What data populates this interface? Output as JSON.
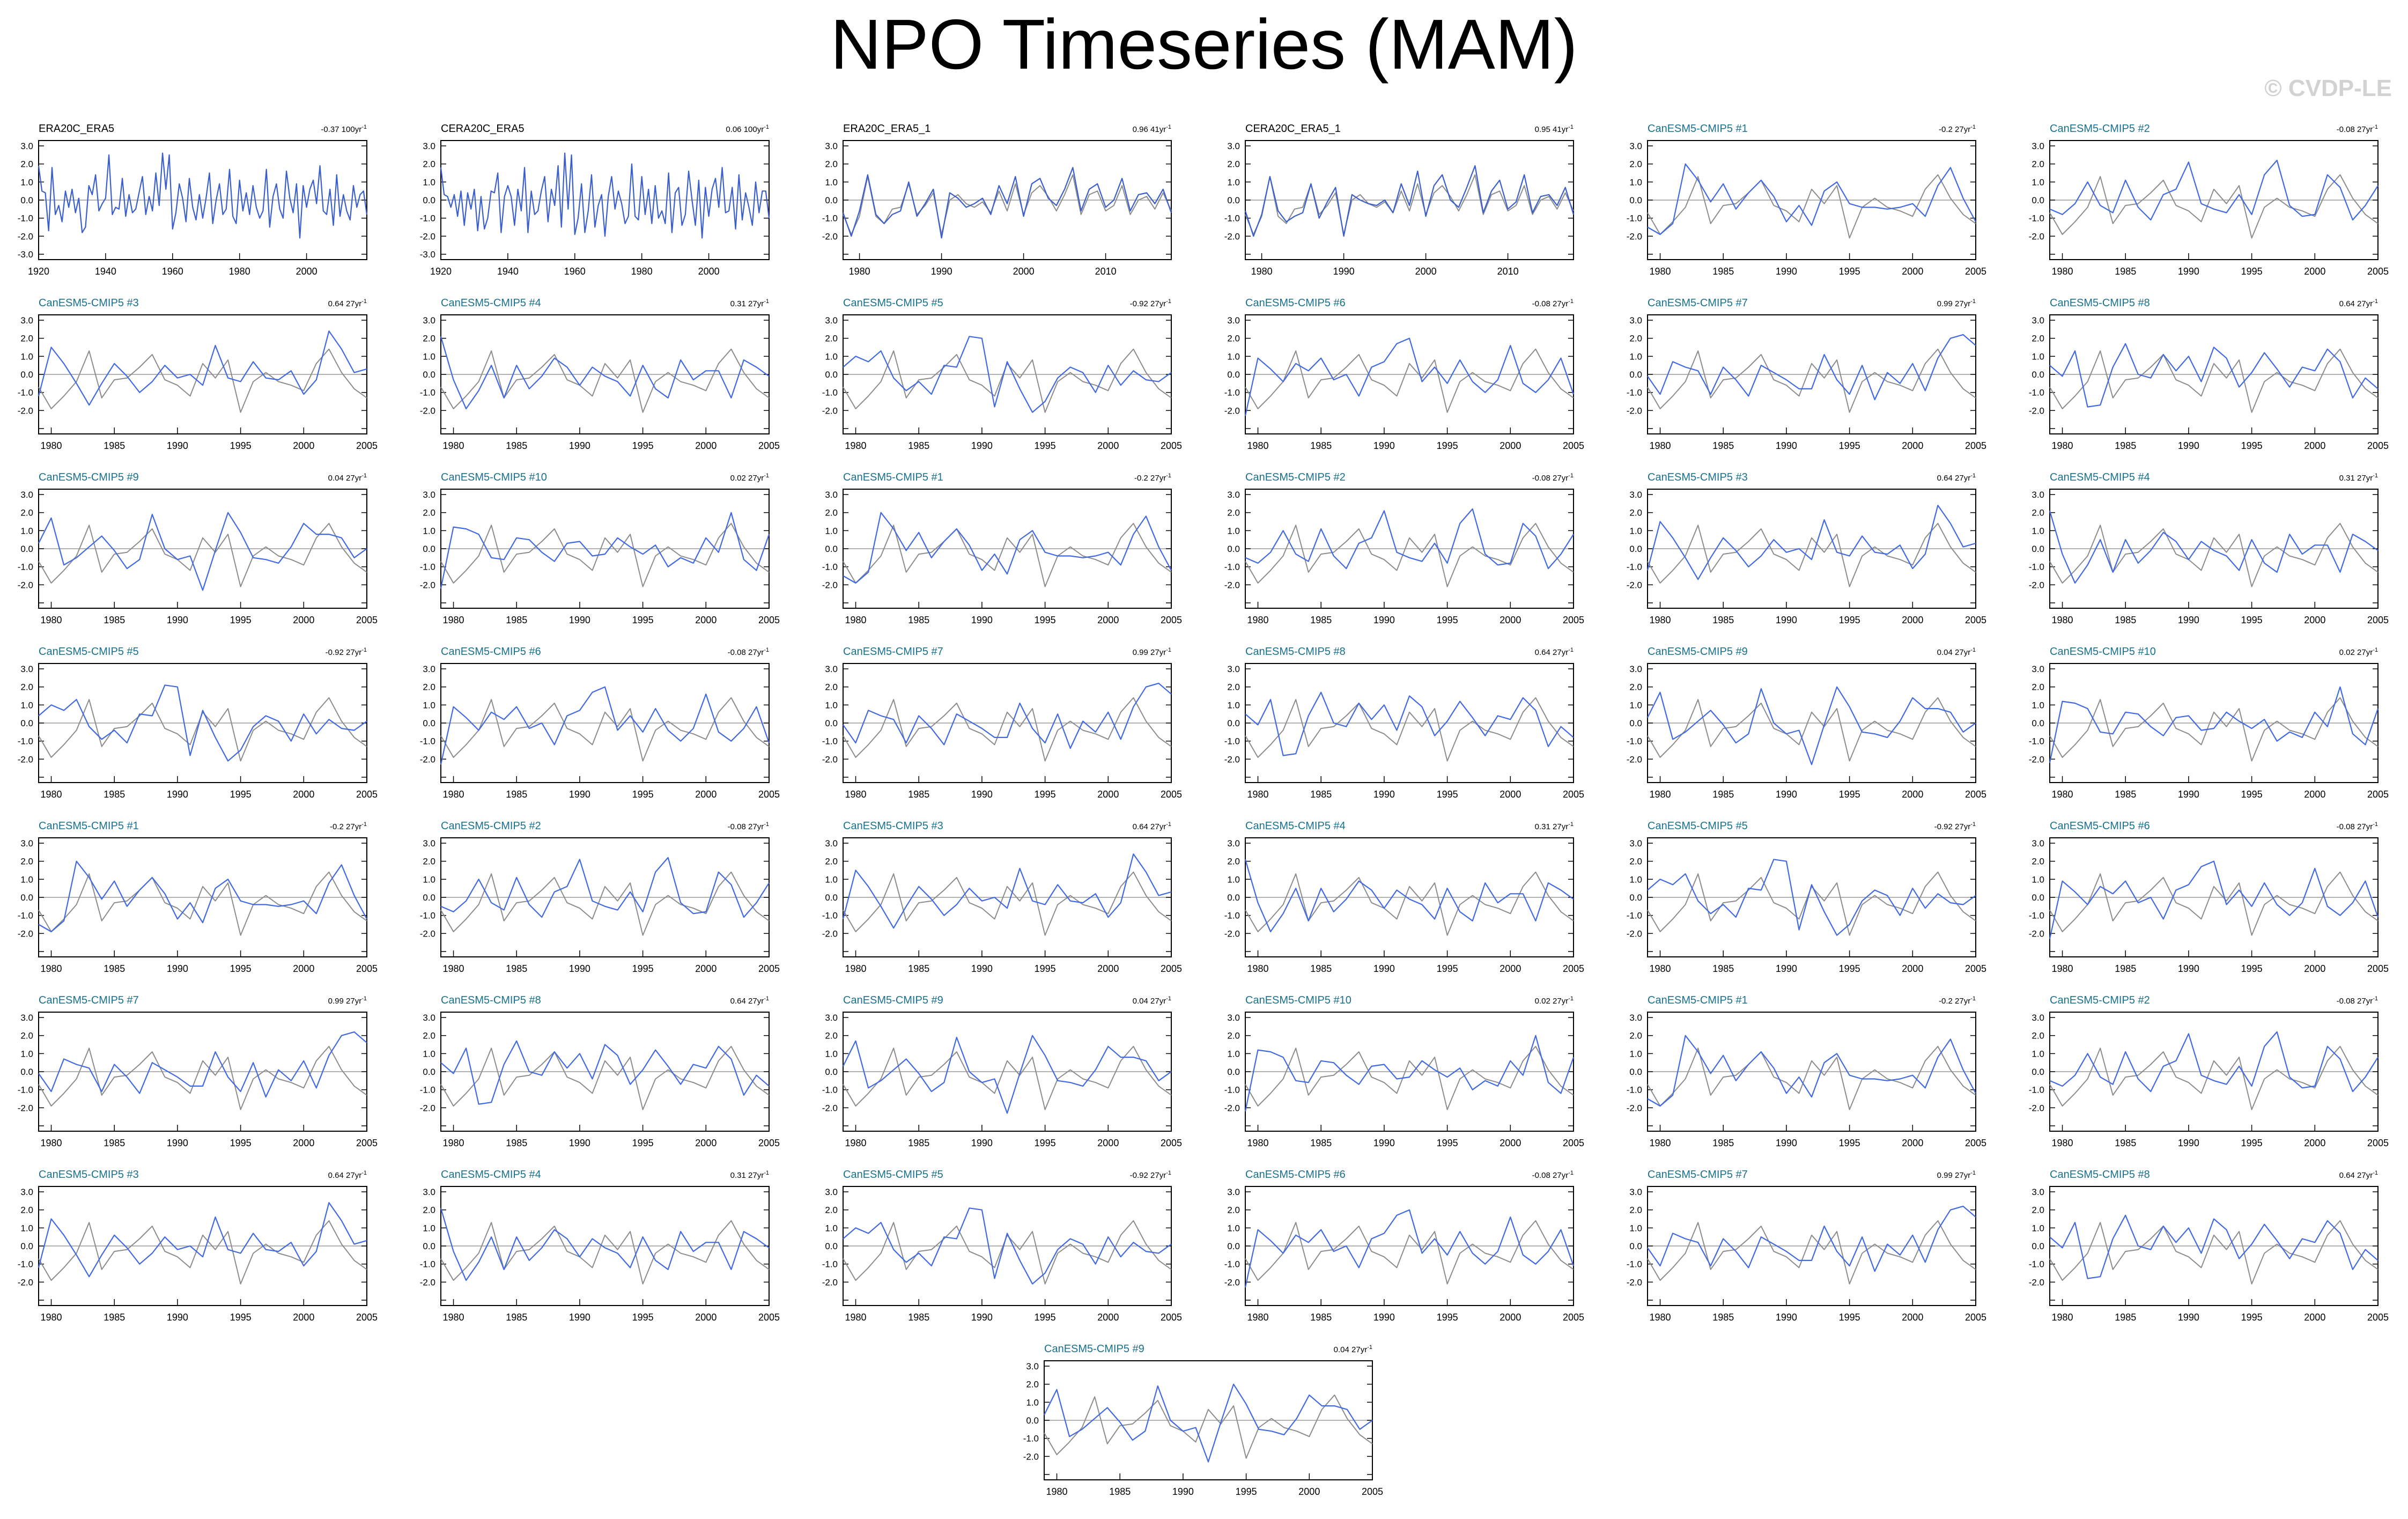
{
  "title": "NPO Timeseries (MAM)",
  "watermark": "© CVDP-LE",
  "colors": {
    "obs_line": "#3a5fcd",
    "model_line": "#4169e1",
    "ref_line": "#8c8c8c",
    "model_title": "#17718f",
    "obs_title": "#000000"
  },
  "chart_data": {
    "type": "line",
    "y_ticks": [
      "3.0",
      "2.0",
      "1.0",
      "0.0",
      "-1.0",
      "-2.0",
      "-3.0"
    ],
    "panels_obs": [
      {
        "title": "ERA20C_ERA5",
        "trend": "-0.37 100yr",
        "xlim": [
          1920,
          2018
        ],
        "xticks": [
          "1920",
          "1940",
          "1960",
          "1980",
          "2000"
        ],
        "ylim": [
          -3,
          3
        ]
      },
      {
        "title": "CERA20C_ERA5",
        "trend": "0.06 100yr",
        "xlim": [
          1920,
          2018
        ],
        "xticks": [
          "1920",
          "1940",
          "1960",
          "1980",
          "2000"
        ],
        "ylim": [
          -3,
          3
        ]
      },
      {
        "title": "ERA20C_ERA5_1",
        "trend": "0.96 41yr",
        "xlim": [
          1978,
          2018
        ],
        "xticks": [
          "1980",
          "1990",
          "2000",
          "2010"
        ],
        "ylim": [
          -3,
          3
        ]
      },
      {
        "title": "CERA20C_ERA5_1",
        "trend": "0.95 41yr",
        "xlim": [
          1978,
          2018
        ],
        "xticks": [
          "1980",
          "1990",
          "2000",
          "2010"
        ],
        "ylim": [
          -3,
          3
        ]
      }
    ],
    "panels_model": [
      {
        "title": "CanESM5-CMIP5 #1",
        "trend": "-0.2 27yr"
      },
      {
        "title": "CanESM5-CMIP5 #2",
        "trend": "-0.08 27yr"
      },
      {
        "title": "CanESM5-CMIP5 #3",
        "trend": "0.64 27yr"
      },
      {
        "title": "CanESM5-CMIP5 #4",
        "trend": "0.31 27yr"
      },
      {
        "title": "CanESM5-CMIP5 #5",
        "trend": "-0.92 27yr"
      },
      {
        "title": "CanESM5-CMIP5 #6",
        "trend": "-0.08 27yr"
      },
      {
        "title": "CanESM5-CMIP5 #7",
        "trend": "0.99 27yr"
      },
      {
        "title": "CanESM5-CMIP5 #8",
        "trend": "0.64 27yr"
      },
      {
        "title": "CanESM5-CMIP5 #9",
        "trend": "0.04 27yr"
      },
      {
        "title": "CanESM5-CMIP5 #10",
        "trend": "0.02 27yr"
      },
      {
        "title": "CanESM5-CMIP5 #1",
        "trend": "-0.2 27yr"
      },
      {
        "title": "CanESM5-CMIP5 #2",
        "trend": "-0.08 27yr"
      },
      {
        "title": "CanESM5-CMIP5 #3",
        "trend": "0.64 27yr"
      },
      {
        "title": "CanESM5-CMIP5 #4",
        "trend": "0.31 27yr"
      },
      {
        "title": "CanESM5-CMIP5 #5",
        "trend": "-0.92 27yr"
      },
      {
        "title": "CanESM5-CMIP5 #6",
        "trend": "-0.08 27yr"
      },
      {
        "title": "CanESM5-CMIP5 #7",
        "trend": "0.99 27yr"
      },
      {
        "title": "CanESM5-CMIP5 #8",
        "trend": "0.64 27yr"
      },
      {
        "title": "CanESM5-CMIP5 #9",
        "trend": "0.04 27yr"
      },
      {
        "title": "CanESM5-CMIP5 #10",
        "trend": "0.02 27yr"
      },
      {
        "title": "CanESM5-CMIP5 #1",
        "trend": "-0.2 27yr"
      },
      {
        "title": "CanESM5-CMIP5 #2",
        "trend": "-0.08 27yr"
      },
      {
        "title": "CanESM5-CMIP5 #3",
        "trend": "0.64 27yr"
      },
      {
        "title": "CanESM5-CMIP5 #4",
        "trend": "0.31 27yr"
      },
      {
        "title": "CanESM5-CMIP5 #5",
        "trend": "-0.92 27yr"
      },
      {
        "title": "CanESM5-CMIP5 #6",
        "trend": "-0.08 27yr"
      },
      {
        "title": "CanESM5-CMIP5 #7",
        "trend": "0.99 27yr"
      },
      {
        "title": "CanESM5-CMIP5 #8",
        "trend": "0.64 27yr"
      },
      {
        "title": "CanESM5-CMIP5 #9",
        "trend": "0.04 27yr"
      },
      {
        "title": "CanESM5-CMIP5 #10",
        "trend": "0.02 27yr"
      },
      {
        "title": "CanESM5-CMIP5 #1",
        "trend": "-0.2 27yr"
      },
      {
        "title": "CanESM5-CMIP5 #2",
        "trend": "-0.08 27yr"
      },
      {
        "title": "CanESM5-CMIP5 #3",
        "trend": "0.64 27yr"
      },
      {
        "title": "CanESM5-CMIP5 #4",
        "trend": "0.31 27yr"
      },
      {
        "title": "CanESM5-CMIP5 #5",
        "trend": "-0.92 27yr"
      },
      {
        "title": "CanESM5-CMIP5 #6",
        "trend": "-0.08 27yr"
      },
      {
        "title": "CanESM5-CMIP5 #7",
        "trend": "0.99 27yr"
      },
      {
        "title": "CanESM5-CMIP5 #8",
        "trend": "0.64 27yr"
      },
      {
        "title": "CanESM5-CMIP5 #9",
        "trend": "0.04 27yr"
      }
    ],
    "model_xlim": [
      1979,
      2005
    ],
    "model_xticks": [
      "1980",
      "1985",
      "1990",
      "1995",
      "2000",
      "2005"
    ],
    "model_ylim": [
      -3,
      3
    ],
    "series_obs_long_1": [
      1.9,
      0.5,
      0.4,
      -1.7,
      1.8,
      -0.8,
      -0.3,
      -1.2,
      0.5,
      -0.4,
      0.6,
      -0.7,
      0.1,
      -1.8,
      -1.5,
      0.8,
      0.3,
      1.4,
      -0.6,
      -0.2,
      0.1,
      2.5,
      -0.8,
      -0.4,
      -0.5,
      1.2,
      -0.9,
      0.3,
      -0.7,
      -0.5,
      0.4,
      1.3,
      -0.8,
      0.2,
      -0.6,
      1.5,
      -0.3,
      2.6,
      0.6,
      2.5,
      -1.6,
      -0.7,
      0.9,
      0.1,
      -1.2,
      1.2,
      -0.4,
      -1.1,
      0.3,
      -1.0,
      0.1,
      1.5,
      -1.3,
      0.0,
      0.9,
      -0.8,
      -0.5,
      1.7,
      -0.9,
      -1.3,
      1.1,
      -0.6,
      0.4,
      -0.8,
      0.8,
      -0.4,
      -1.0,
      -0.6,
      1.7,
      -1.5,
      0.2,
      0.9,
      -0.5,
      -1.0,
      1.6,
      0.1,
      -0.7,
      0.9,
      -2.1,
      0.8,
      -0.4,
      0.6,
      1.1,
      -0.2,
      1.9,
      -0.6,
      -0.8,
      0.6,
      -1.4,
      1.4,
      -0.9,
      0.3,
      -0.6,
      -1.1,
      0.8,
      -0.4,
      0.3,
      0.5,
      -0.8
    ],
    "series_obs_long_2": [
      1.8,
      0.3,
      0.2,
      -0.4,
      0.3,
      -0.9,
      0.5,
      -1.4,
      0.4,
      -0.5,
      0.6,
      -1.7,
      0.2,
      -1.6,
      -1.0,
      0.5,
      0.4,
      1.5,
      -1.8,
      0.2,
      0.8,
      0.2,
      -1.4,
      0.6,
      -0.6,
      1.8,
      -1.8,
      0.5,
      -0.8,
      -0.6,
      0.5,
      1.3,
      -1.2,
      0.6,
      -0.3,
      1.9,
      -1.5,
      2.6,
      -0.5,
      2.5,
      -1.9,
      -1.0,
      0.9,
      -1.8,
      -0.6,
      1.4,
      -1.5,
      -0.3,
      0.3,
      -2.0,
      0.2,
      1.3,
      -0.5,
      0.5,
      -0.2,
      -1.3,
      -0.9,
      2.0,
      -0.9,
      -1.1,
      1.3,
      -0.8,
      0.6,
      -1.3,
      0.8,
      -1.0,
      -0.6,
      -1.3,
      1.5,
      -1.8,
      0.4,
      0.7,
      -1.4,
      -0.8,
      1.6,
      0.0,
      -1.4,
      1.1,
      -2.1,
      0.7,
      -0.9,
      0.6,
      1.2,
      -0.4,
      1.8,
      -0.7,
      -0.6,
      0.7,
      -1.6,
      1.4,
      -1.1,
      0.4,
      -0.4,
      -1.4,
      1.0,
      -0.7,
      0.5,
      0.5,
      -1.0
    ],
    "series_obs_ref": [
      -0.8,
      -1.9,
      -0.9,
      1.3,
      -0.9,
      -1.3,
      -0.5,
      -0.4,
      0.9,
      -0.8,
      -0.3,
      0.4,
      -1.9,
      0.0,
      0.3,
      -0.2,
      -0.4,
      -0.1,
      -0.7,
      0.5,
      -0.6,
      0.9,
      -0.8,
      0.4,
      0.8,
      0.2,
      -0.6,
      0.3,
      1.4,
      -0.8,
      0.3,
      0.5,
      -0.6,
      -0.3,
      0.8,
      -0.8,
      0.0,
      0.2,
      -0.5,
      0.4,
      -0.6
    ],
    "series_obs_short_a": [
      -0.7,
      -2.0,
      -0.6,
      1.4,
      -0.8,
      -1.3,
      -0.8,
      -0.6,
      1.0,
      -0.9,
      -0.2,
      0.6,
      -2.1,
      0.4,
      0.1,
      -0.4,
      -0.2,
      0.1,
      -0.8,
      0.8,
      -0.2,
      1.3,
      -0.9,
      0.9,
      1.2,
      0.1,
      -0.3,
      0.6,
      1.8,
      -0.6,
      0.6,
      0.9,
      -0.4,
      0.0,
      1.2,
      -0.6,
      0.3,
      0.4,
      -0.2,
      0.6,
      -0.7
    ],
    "series_obs_short_b": [
      -0.6,
      -2.0,
      -0.8,
      1.3,
      -0.6,
      -1.2,
      -0.9,
      -0.7,
      0.9,
      -1.0,
      -0.1,
      0.7,
      -2.0,
      0.3,
      0.0,
      -0.2,
      -0.3,
      0.0,
      -0.7,
      0.9,
      -0.3,
      1.6,
      -0.9,
      0.8,
      1.4,
      0.0,
      -0.4,
      0.7,
      1.9,
      -0.7,
      0.5,
      1.1,
      -0.5,
      -0.1,
      1.4,
      -0.7,
      0.2,
      0.3,
      -0.3,
      0.7,
      -0.8
    ],
    "series_ref_model": [
      -0.7,
      -1.9,
      -1.2,
      -0.4,
      1.3,
      -1.3,
      -0.3,
      -0.2,
      0.4,
      1.1,
      -0.3,
      -0.6,
      -1.2,
      0.6,
      -0.2,
      0.8,
      -2.1,
      -0.4,
      0.1,
      -0.4,
      -0.6,
      -0.9,
      0.6,
      1.4,
      0.1,
      -0.8,
      -1.3
    ],
    "series_models": [
      [
        -1.5,
        -1.9,
        -1.3,
        2.0,
        1.1,
        -0.1,
        0.9,
        -0.5,
        0.4,
        1.1,
        0.2,
        -1.2,
        -0.3,
        -1.4,
        0.5,
        1.0,
        -0.2,
        -0.4,
        -0.4,
        -0.5,
        -0.4,
        -0.2,
        -0.9,
        0.8,
        1.8,
        0.1,
        -1.2
      ],
      [
        -0.5,
        -0.8,
        -0.2,
        1.0,
        -0.3,
        -0.7,
        1.1,
        -0.4,
        -1.1,
        0.3,
        0.6,
        2.1,
        -0.2,
        -0.5,
        -0.7,
        0.3,
        -0.8,
        1.4,
        2.2,
        -0.3,
        -0.9,
        -0.8,
        1.4,
        0.7,
        -1.1,
        -0.3,
        0.8
      ],
      [
        -1.2,
        1.5,
        0.6,
        -0.5,
        -1.7,
        -0.5,
        0.6,
        -0.1,
        -1.0,
        -0.4,
        0.5,
        -0.2,
        0.0,
        -0.6,
        1.6,
        -0.2,
        -0.4,
        0.7,
        -0.2,
        -0.3,
        0.2,
        -1.1,
        -0.3,
        2.4,
        1.4,
        0.1,
        0.3
      ],
      [
        2.1,
        -0.3,
        -1.9,
        -0.9,
        0.5,
        -1.3,
        0.5,
        -0.8,
        -0.1,
        0.9,
        0.4,
        -0.6,
        0.4,
        -0.1,
        -0.4,
        -1.2,
        0.5,
        -0.8,
        -1.3,
        0.8,
        -0.3,
        0.2,
        0.2,
        -1.3,
        0.8,
        0.4,
        -0.1
      ],
      [
        0.4,
        1.0,
        0.7,
        1.3,
        -0.2,
        -0.9,
        -0.4,
        -1.1,
        0.5,
        0.4,
        2.1,
        2.0,
        -1.8,
        0.7,
        -0.8,
        -2.1,
        -1.5,
        -0.2,
        0.4,
        0.1,
        -1.0,
        0.5,
        -0.6,
        0.2,
        -0.3,
        -0.4,
        0.1
      ],
      [
        -2.3,
        0.9,
        0.3,
        -0.4,
        0.6,
        0.2,
        0.9,
        -0.3,
        0.0,
        -1.2,
        0.4,
        0.7,
        1.7,
        2.0,
        -0.4,
        0.4,
        -0.5,
        0.8,
        -0.4,
        -1.0,
        -0.3,
        1.6,
        -0.5,
        -1.0,
        -0.3,
        0.9,
        -1.1
      ],
      [
        -0.1,
        -1.1,
        0.7,
        0.4,
        0.2,
        -1.1,
        0.4,
        -0.3,
        -1.2,
        0.5,
        0.1,
        -0.3,
        -0.8,
        -0.8,
        1.1,
        -0.3,
        -1.1,
        0.5,
        -1.4,
        0.1,
        -0.5,
        0.6,
        -0.9,
        0.9,
        2.0,
        2.2,
        1.6
      ],
      [
        0.5,
        -0.1,
        1.3,
        -1.8,
        -1.7,
        0.4,
        1.7,
        0.0,
        -0.2,
        1.1,
        0.2,
        1.0,
        -0.4,
        1.5,
        0.9,
        -0.7,
        0.1,
        1.2,
        0.3,
        -0.7,
        0.4,
        0.2,
        1.4,
        0.7,
        -1.3,
        -0.2,
        -0.8
      ],
      [
        0.3,
        1.7,
        -0.9,
        -0.5,
        0.1,
        0.7,
        -0.1,
        -1.1,
        -0.6,
        1.9,
        0.0,
        -0.6,
        -0.4,
        -2.3,
        -0.1,
        2.0,
        0.9,
        -0.5,
        -0.6,
        -0.8,
        0.1,
        1.4,
        0.8,
        0.8,
        0.6,
        -0.5,
        0.0
      ],
      [
        -2.2,
        1.2,
        1.1,
        0.8,
        -0.5,
        -0.6,
        0.6,
        0.5,
        -0.2,
        -0.7,
        0.3,
        0.4,
        -0.4,
        -0.3,
        0.6,
        0.1,
        -0.3,
        0.2,
        -1.0,
        -0.5,
        -0.8,
        0.6,
        -0.2,
        2.0,
        -0.6,
        -1.2,
        0.8
      ]
    ]
  }
}
